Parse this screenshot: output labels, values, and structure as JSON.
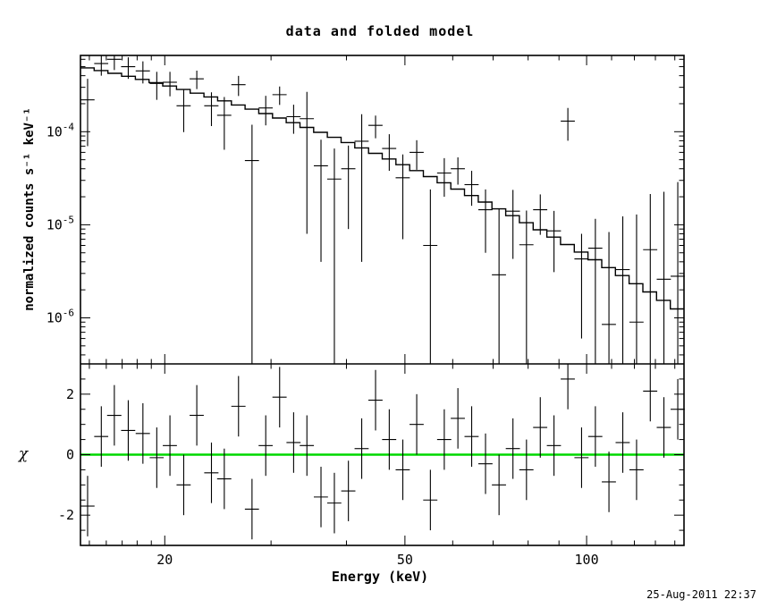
{
  "title": "data and folded model",
  "timestamp": "25-Aug-2011 22:37",
  "colors": {
    "foreground": "#000000",
    "background": "#ffffff",
    "model_line": "#000000",
    "zero_line": "#00d800"
  },
  "chart_data": {
    "type": "scatter",
    "title": "data and folded model",
    "xlabel": "Energy (keV)",
    "ylabel_top": "normalized counts s⁻¹ keV⁻¹",
    "ylabel_bottom": "χ",
    "xscale": "log",
    "xlim": [
      14.5,
      145
    ],
    "layout": {
      "legend": "none",
      "grid": false,
      "panels": 2
    },
    "xticks": {
      "major": [
        20,
        50,
        100
      ],
      "labels": [
        "20",
        "50",
        "100"
      ],
      "minor": [
        15,
        16,
        17,
        18,
        19,
        30,
        40,
        60,
        70,
        80,
        90,
        110,
        120,
        130,
        140
      ]
    },
    "top": {
      "yscale": "log",
      "ylim": [
        3.2e-07,
        0.00066
      ],
      "yticks": [
        {
          "value": 0.0001,
          "base": "10",
          "exp": "-4"
        },
        {
          "value": 1e-05,
          "base": "10",
          "exp": "-5"
        },
        {
          "value": 1e-06,
          "base": "10",
          "exp": "-6"
        }
      ]
    },
    "bottom": {
      "yscale": "linear",
      "ylim": [
        -3,
        3
      ],
      "yticks": {
        "major": [
          -2,
          0,
          2
        ],
        "labels": [
          "-2",
          "0",
          "2"
        ],
        "minor": [
          -2.5,
          -1.5,
          -1,
          -0.5,
          0.5,
          1,
          1.5,
          2.5
        ]
      },
      "zero_line_y": 0
    },
    "model": {
      "description": "stepped folded model, log10(y) = c0 + c1*u + c2*u^2 with u = log10(E/14.5)",
      "coeffs": [
        -3.3,
        -1.2,
        -1.45
      ],
      "n_bins": 44
    },
    "points": [
      {
        "x": 14.9,
        "xerr": 0.4,
        "y": 0.00022,
        "yerr": 0.00015,
        "chi": -1.7,
        "chierr": 1
      },
      {
        "x": 15.7,
        "xerr": 0.42,
        "y": 0.00054,
        "yerr": 0.00014,
        "chi": 0.6,
        "chierr": 1
      },
      {
        "x": 16.5,
        "xerr": 0.45,
        "y": 0.0006,
        "yerr": 0.00014,
        "chi": 1.3,
        "chierr": 1
      },
      {
        "x": 17.4,
        "xerr": 0.47,
        "y": 0.0005,
        "yerr": 0.00013,
        "chi": 0.8,
        "chierr": 1
      },
      {
        "x": 18.4,
        "xerr": 0.5,
        "y": 0.00045,
        "yerr": 0.00012,
        "chi": 0.7,
        "chierr": 1
      },
      {
        "x": 19.4,
        "xerr": 0.52,
        "y": 0.00033,
        "yerr": 0.00011,
        "chi": -0.1,
        "chierr": 1
      },
      {
        "x": 20.4,
        "xerr": 0.55,
        "y": 0.00034,
        "yerr": 0.0001,
        "chi": 0.3,
        "chierr": 1
      },
      {
        "x": 21.5,
        "xerr": 0.58,
        "y": 0.00019,
        "yerr": 9.1e-05,
        "chi": -1.0,
        "chierr": 1
      },
      {
        "x": 22.6,
        "xerr": 0.61,
        "y": 0.00037,
        "yerr": 8.3e-05,
        "chi": 1.3,
        "chierr": 1
      },
      {
        "x": 23.9,
        "xerr": 0.65,
        "y": 0.00019,
        "yerr": 7.5e-05,
        "chi": -0.6,
        "chierr": 1
      },
      {
        "x": 25.1,
        "xerr": 0.68,
        "y": 0.00015,
        "yerr": 8.6e-05,
        "chi": -0.8,
        "chierr": 1
      },
      {
        "x": 26.5,
        "xerr": 0.72,
        "y": 0.00032,
        "yerr": 7.8e-05,
        "chi": 1.6,
        "chierr": 1
      },
      {
        "x": 27.9,
        "xerr": 0.75,
        "y": 4.9e-05,
        "yerr": 7e-05,
        "chi": -1.8,
        "chierr": 1
      },
      {
        "x": 29.4,
        "xerr": 0.79,
        "y": 0.00018,
        "yerr": 6.3e-05,
        "chi": 0.3,
        "chierr": 1
      },
      {
        "x": 31.0,
        "xerr": 0.84,
        "y": 0.00025,
        "yerr": 5.6e-05,
        "chi": 1.9,
        "chierr": 1
      },
      {
        "x": 32.7,
        "xerr": 0.88,
        "y": 0.000145,
        "yerr": 5e-05,
        "chi": 0.4,
        "chierr": 1
      },
      {
        "x": 34.4,
        "xerr": 0.93,
        "y": 0.000138,
        "yerr": 0.00013,
        "chi": 0.3,
        "chierr": 1
      },
      {
        "x": 36.3,
        "xerr": 0.98,
        "y": 4.3e-05,
        "yerr": 3.9e-05,
        "chi": -1.4,
        "chierr": 1
      },
      {
        "x": 38.2,
        "xerr": 1.03,
        "y": 3.1e-05,
        "yerr": 3.5e-05,
        "chi": -1.6,
        "chierr": 1
      },
      {
        "x": 40.3,
        "xerr": 1.09,
        "y": 4e-05,
        "yerr": 3.1e-05,
        "chi": -1.2,
        "chierr": 1
      },
      {
        "x": 42.4,
        "xerr": 1.14,
        "y": 7.9e-05,
        "yerr": 7.5e-05,
        "chi": 0.2,
        "chierr": 1
      },
      {
        "x": 44.7,
        "xerr": 1.21,
        "y": 0.000117,
        "yerr": 3.2e-05,
        "chi": 1.8,
        "chierr": 1
      },
      {
        "x": 47.1,
        "xerr": 1.27,
        "y": 6.6e-05,
        "yerr": 2.8e-05,
        "chi": 0.5,
        "chierr": 1
      },
      {
        "x": 49.6,
        "xerr": 1.34,
        "y": 3.2e-05,
        "yerr": 2.5e-05,
        "chi": -0.5,
        "chierr": 1
      },
      {
        "x": 52.3,
        "xerr": 1.41,
        "y": 6e-05,
        "yerr": 2.1e-05,
        "chi": 1.0,
        "chierr": 1
      },
      {
        "x": 55.1,
        "xerr": 1.49,
        "y": 6e-06,
        "yerr": 1.8e-05,
        "chi": -1.5,
        "chierr": 1
      },
      {
        "x": 58.1,
        "xerr": 1.57,
        "y": 3.6e-05,
        "yerr": 1.6e-05,
        "chi": 0.5,
        "chierr": 1
      },
      {
        "x": 61.2,
        "xerr": 1.65,
        "y": 4e-05,
        "yerr": 1.3e-05,
        "chi": 1.2,
        "chierr": 1
      },
      {
        "x": 64.5,
        "xerr": 1.74,
        "y": 2.7e-05,
        "yerr": 1.1e-05,
        "chi": 0.6,
        "chierr": 1
      },
      {
        "x": 68.0,
        "xerr": 1.84,
        "y": 1.45e-05,
        "yerr": 9.5e-06,
        "chi": -0.3,
        "chierr": 1
      },
      {
        "x": 71.6,
        "xerr": 1.93,
        "y": 2.9e-06,
        "yerr": 1.2e-05,
        "chi": -1.0,
        "chierr": 1
      },
      {
        "x": 75.5,
        "xerr": 2.04,
        "y": 1.4e-05,
        "yerr": 9.7e-06,
        "chi": 0.2,
        "chierr": 1
      },
      {
        "x": 79.5,
        "xerr": 2.15,
        "y": 6.1e-06,
        "yerr": 8.1e-06,
        "chi": -0.5,
        "chierr": 1
      },
      {
        "x": 83.8,
        "xerr": 2.26,
        "y": 1.45e-05,
        "yerr": 6.7e-06,
        "chi": 0.9,
        "chierr": 1
      },
      {
        "x": 88.3,
        "xerr": 2.38,
        "y": 8.6e-06,
        "yerr": 5.5e-06,
        "chi": 0.3,
        "chierr": 1
      },
      {
        "x": 93.1,
        "xerr": 2.51,
        "y": 0.00013,
        "yerr": 5e-05,
        "chi": 2.5,
        "chierr": 1
      },
      {
        "x": 98.1,
        "xerr": 2.65,
        "y": 4.3e-06,
        "yerr": 3.7e-06,
        "chi": -0.1,
        "chierr": 1
      },
      {
        "x": 103.4,
        "xerr": 2.79,
        "y": 5.6e-06,
        "yerr": 6e-06,
        "chi": 0.6,
        "chierr": 1
      },
      {
        "x": 108.9,
        "xerr": 2.94,
        "y": 8.5e-07,
        "yerr": 7.5e-06,
        "chi": -0.9,
        "chierr": 1
      },
      {
        "x": 114.8,
        "xerr": 3.1,
        "y": 3.3e-06,
        "yerr": 9e-06,
        "chi": 0.4,
        "chierr": 1
      },
      {
        "x": 121.0,
        "xerr": 3.27,
        "y": 9e-07,
        "yerr": 1.2e-05,
        "chi": -0.5,
        "chierr": 1
      },
      {
        "x": 127.5,
        "xerr": 3.44,
        "y": 5.4e-06,
        "yerr": 1.6e-05,
        "chi": 2.1,
        "chierr": 1
      },
      {
        "x": 134.3,
        "xerr": 3.63,
        "y": 2.6e-06,
        "yerr": 2e-05,
        "chi": 0.9,
        "chierr": 1
      },
      {
        "x": 141.6,
        "xerr": 3.82,
        "y": 2.8e-06,
        "yerr": 2.6e-05,
        "chi": 1.5,
        "chierr": 1
      }
    ]
  }
}
